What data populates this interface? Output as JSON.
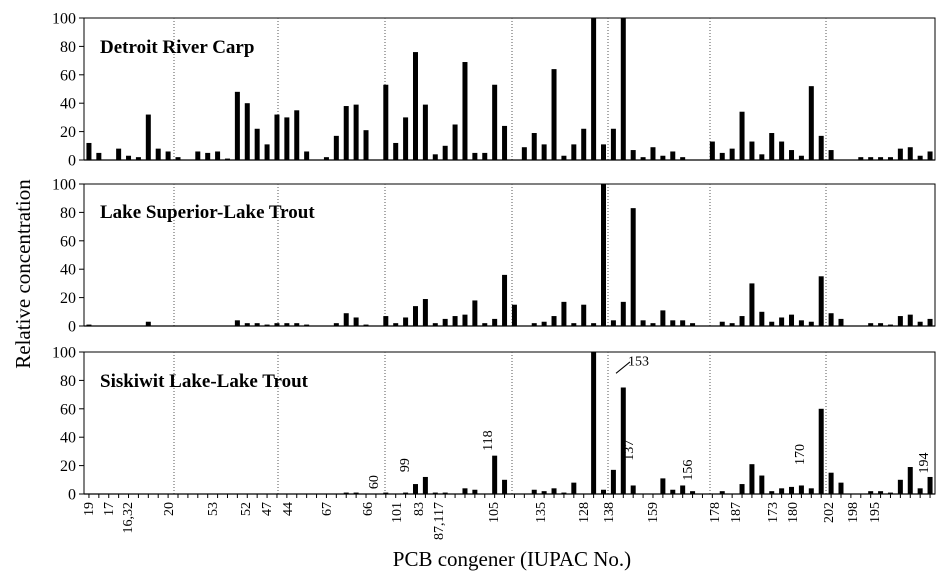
{
  "chart_data": {
    "type": "bar",
    "ylabel": "Relative concentration",
    "xlabel": "PCB congener (IUPAC No.)",
    "ylim": [
      0,
      100
    ],
    "yticks": [
      "0",
      "20",
      "40",
      "60",
      "80",
      "100"
    ],
    "grid": "vertical dotted separators between congener groups",
    "x_tick_labels": [
      "19",
      "17",
      "16,32",
      "20",
      "53",
      "52",
      "47",
      "44",
      "67",
      "66",
      "101",
      "83",
      "87,117",
      "105",
      "135",
      "128",
      "138",
      "159",
      "178",
      "187",
      "173",
      "180",
      "202",
      "198",
      "195"
    ],
    "panels": [
      {
        "title": "Detroit River Carp",
        "values": [
          12,
          5,
          0,
          8,
          3,
          2,
          32,
          8,
          6,
          2,
          0,
          6,
          5,
          6,
          1,
          48,
          40,
          22,
          11,
          32,
          30,
          35,
          6,
          0,
          2,
          17,
          38,
          39,
          21,
          0,
          53,
          12,
          30,
          76,
          39,
          4,
          10,
          25,
          69,
          5,
          5,
          53,
          24,
          0,
          9,
          19,
          11,
          64,
          3,
          11,
          22,
          100,
          11,
          22,
          100,
          7,
          2,
          9,
          3,
          6,
          2,
          0,
          0,
          13,
          5,
          8,
          34,
          13,
          4,
          19,
          13,
          7,
          3,
          52,
          17,
          7,
          0,
          0,
          2,
          2,
          2,
          2,
          8,
          9,
          3,
          6
        ]
      },
      {
        "title": "Lake Superior-Lake Trout",
        "values": [
          1,
          0,
          0,
          0,
          0,
          0,
          3,
          0,
          0,
          0,
          0,
          0,
          0,
          0,
          0,
          4,
          2,
          2,
          1,
          2,
          2,
          2,
          1,
          0,
          0,
          2,
          9,
          6,
          1,
          0,
          7,
          2,
          6,
          14,
          19,
          2,
          5,
          7,
          8,
          18,
          2,
          5,
          36,
          15,
          0,
          2,
          3,
          7,
          17,
          2,
          15,
          2,
          100,
          4,
          17,
          83,
          4,
          2,
          11,
          4,
          4,
          2,
          0,
          0,
          3,
          2,
          7,
          30,
          10,
          3,
          6,
          8,
          4,
          3,
          35,
          9,
          5,
          0,
          0,
          2,
          2,
          1,
          7,
          8,
          3,
          5
        ]
      },
      {
        "title": "Siskiwit Lake-Lake Trout",
        "values": [
          0,
          0,
          0,
          0,
          0,
          0,
          0,
          0,
          0,
          0,
          0,
          0,
          0,
          0,
          0,
          0,
          0,
          0,
          0,
          0,
          0,
          0,
          0,
          0,
          0,
          0,
          1,
          1,
          0,
          0,
          1,
          0,
          1,
          7,
          12,
          1,
          1,
          0,
          4,
          3,
          0,
          27,
          10,
          0,
          0,
          3,
          2,
          4,
          1,
          8,
          0,
          100,
          3,
          17,
          75,
          6,
          0,
          0,
          11,
          3,
          6,
          2,
          0,
          0,
          2,
          0,
          7,
          21,
          13,
          2,
          4,
          5,
          6,
          4,
          60,
          15,
          8,
          0,
          0,
          2,
          2,
          1,
          10,
          19,
          4,
          12
        ]
      }
    ],
    "annotations": [
      "153",
      "137",
      "156",
      "170",
      "194",
      "60",
      "99",
      "118"
    ]
  }
}
